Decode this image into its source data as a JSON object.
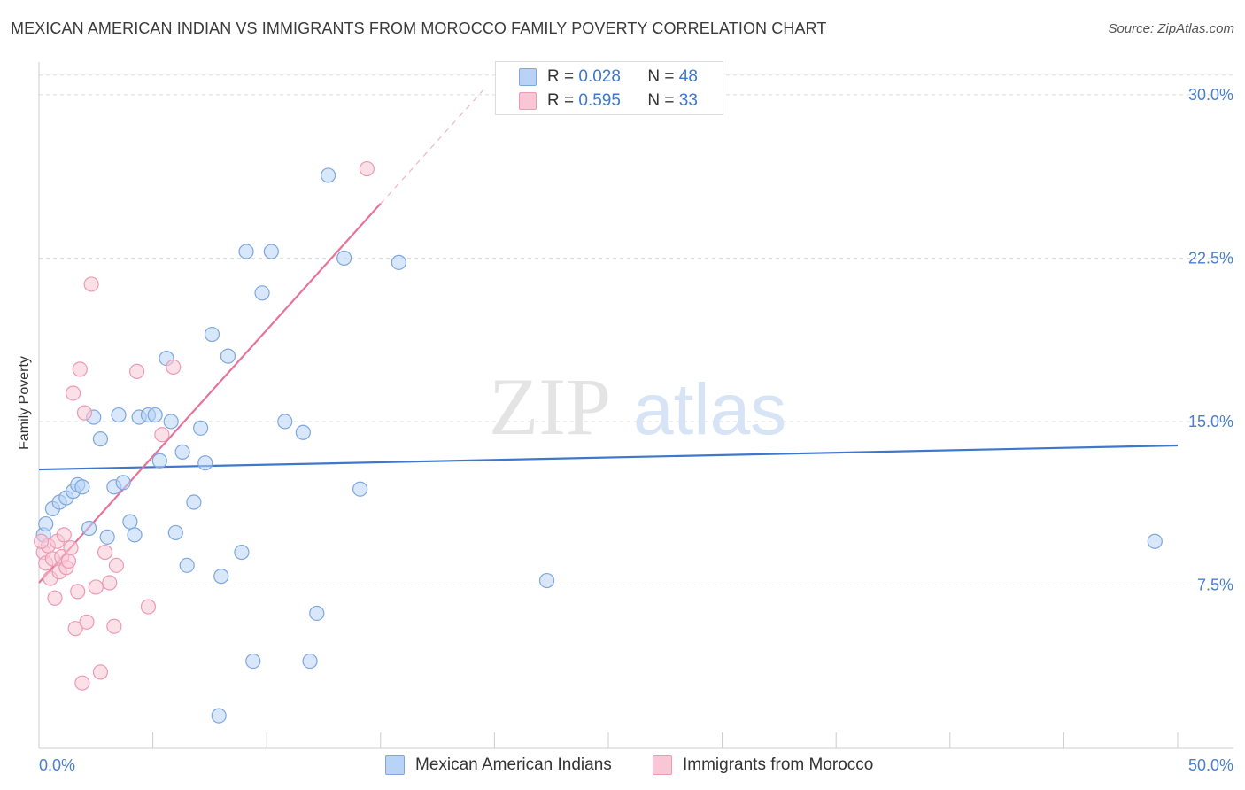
{
  "chart_data": {
    "type": "scatter",
    "title": "MEXICAN AMERICAN INDIAN VS IMMIGRANTS FROM MOROCCO FAMILY POVERTY CORRELATION CHART",
    "source": "Source: ZipAtlas.com",
    "watermark": {
      "zip": "ZIP",
      "atlas": "atlas"
    },
    "ylabel": "Family Poverty",
    "xlim": [
      0,
      50
    ],
    "ylim": [
      0,
      31.5
    ],
    "x_tick_labels": {
      "min": "0.0%",
      "max": "50.0%"
    },
    "y_ticks": [
      {
        "value": 7.5,
        "label": "7.5%"
      },
      {
        "value": 15.0,
        "label": "15.0%"
      },
      {
        "value": 22.5,
        "label": "22.5%"
      },
      {
        "value": 30.0,
        "label": "30.0%"
      }
    ],
    "colors": {
      "blue": "#3d78cc",
      "blue_fill": "#b8d3f5",
      "pink": "#e8739a",
      "pink_fill": "#f9c6d6",
      "grid": "#dddddd"
    },
    "legend": {
      "rows": [
        {
          "r_label": "R =",
          "r_value": "0.028",
          "n_label": "N =",
          "n_value": "48"
        },
        {
          "r_label": "R =",
          "r_value": "0.595",
          "n_label": "N =",
          "n_value": "33"
        }
      ]
    },
    "series": [
      {
        "name": "Mexican American Indians",
        "color": "#3d78cc",
        "trend": {
          "x0": 0,
          "y0": 12.8,
          "x1": 50,
          "y1": 13.9
        },
        "points": [
          [
            0.2,
            9.8
          ],
          [
            0.3,
            10.3
          ],
          [
            0.6,
            11.0
          ],
          [
            0.9,
            11.3
          ],
          [
            1.2,
            11.5
          ],
          [
            1.5,
            11.8
          ],
          [
            1.7,
            12.1
          ],
          [
            1.9,
            12.0
          ],
          [
            2.2,
            10.1
          ],
          [
            2.4,
            15.2
          ],
          [
            2.7,
            14.2
          ],
          [
            3.0,
            9.7
          ],
          [
            3.3,
            12.0
          ],
          [
            3.5,
            15.3
          ],
          [
            3.7,
            12.2
          ],
          [
            4.0,
            10.4
          ],
          [
            4.2,
            9.8
          ],
          [
            4.4,
            15.2
          ],
          [
            4.8,
            15.3
          ],
          [
            5.1,
            15.3
          ],
          [
            5.3,
            13.2
          ],
          [
            5.6,
            17.9
          ],
          [
            5.8,
            15.0
          ],
          [
            6.0,
            9.9
          ],
          [
            6.3,
            13.6
          ],
          [
            6.5,
            8.4
          ],
          [
            6.8,
            11.3
          ],
          [
            7.1,
            14.7
          ],
          [
            7.3,
            13.1
          ],
          [
            7.6,
            19.0
          ],
          [
            8.0,
            7.9
          ],
          [
            8.3,
            18.0
          ],
          [
            8.9,
            9.0
          ],
          [
            9.1,
            22.8
          ],
          [
            9.4,
            4.0
          ],
          [
            9.8,
            20.9
          ],
          [
            10.2,
            22.8
          ],
          [
            10.8,
            15.0
          ],
          [
            11.6,
            14.5
          ],
          [
            11.9,
            4.0
          ],
          [
            12.2,
            6.2
          ],
          [
            12.7,
            26.3
          ],
          [
            13.4,
            22.5
          ],
          [
            14.1,
            11.9
          ],
          [
            15.8,
            22.3
          ],
          [
            7.9,
            1.5
          ],
          [
            22.3,
            7.7
          ],
          [
            49.0,
            9.5
          ]
        ]
      },
      {
        "name": "Immigrants from Morocco",
        "color": "#e8739a",
        "trend": {
          "x0": 0,
          "y0": 7.6,
          "x1": 15.0,
          "y1": 25.0,
          "dash_x1": 19.5,
          "dash_y1": 30.2
        },
        "points": [
          [
            0.2,
            9.0
          ],
          [
            0.3,
            8.5
          ],
          [
            0.4,
            9.3
          ],
          [
            0.5,
            7.8
          ],
          [
            0.6,
            8.7
          ],
          [
            0.7,
            6.9
          ],
          [
            0.8,
            9.5
          ],
          [
            0.9,
            8.1
          ],
          [
            1.0,
            8.8
          ],
          [
            1.1,
            9.8
          ],
          [
            1.2,
            8.3
          ],
          [
            1.3,
            8.6
          ],
          [
            1.4,
            9.2
          ],
          [
            1.5,
            16.3
          ],
          [
            1.6,
            5.5
          ],
          [
            1.7,
            7.2
          ],
          [
            1.8,
            17.4
          ],
          [
            1.9,
            3.0
          ],
          [
            2.0,
            15.4
          ],
          [
            2.1,
            5.8
          ],
          [
            2.3,
            21.3
          ],
          [
            2.5,
            7.4
          ],
          [
            2.7,
            3.5
          ],
          [
            2.9,
            9.0
          ],
          [
            3.1,
            7.6
          ],
          [
            3.3,
            5.6
          ],
          [
            3.4,
            8.4
          ],
          [
            4.3,
            17.3
          ],
          [
            4.8,
            6.5
          ],
          [
            5.4,
            14.4
          ],
          [
            5.9,
            17.5
          ],
          [
            14.4,
            26.6
          ],
          [
            0.1,
            9.5
          ]
        ]
      }
    ]
  }
}
